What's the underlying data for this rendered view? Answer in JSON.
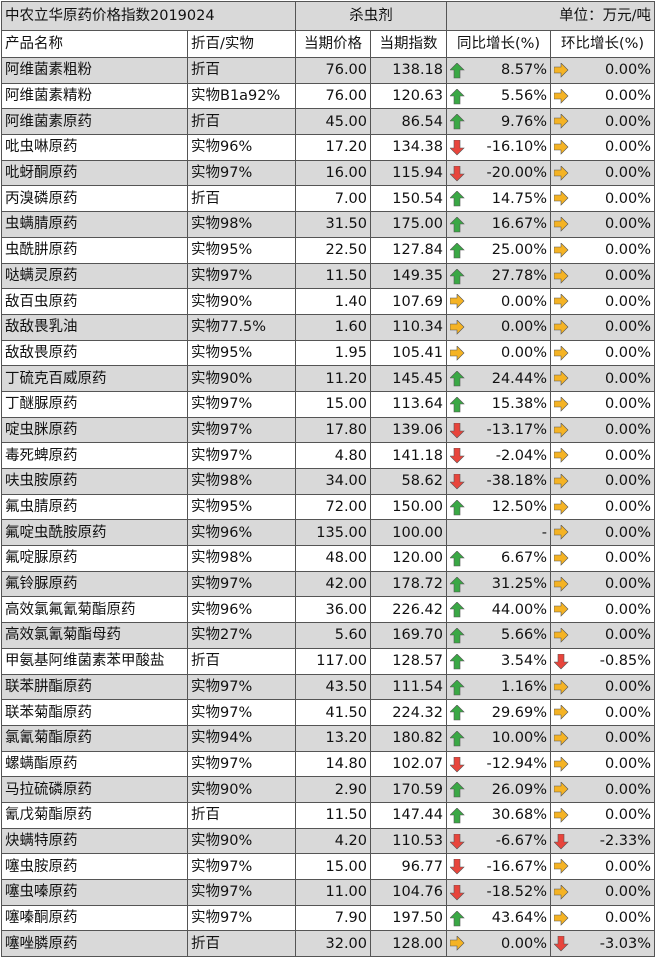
{
  "header": {
    "title": "中农立华原药价格指数2019024",
    "category": "杀虫剂",
    "unit": "单位：万元/吨"
  },
  "table": {
    "columns": [
      "产品名称",
      "折百/实物",
      "当期价格",
      "当期指数",
      "同比增长(%)",
      "环比增长(%)"
    ],
    "rows": [
      [
        "阿维菌素粗粉",
        "折百",
        "76.00",
        "138.18",
        "8.57%",
        "0.00%"
      ],
      [
        "阿维菌素精粉",
        "实物B1a92%",
        "76.00",
        "120.63",
        "5.56%",
        "0.00%"
      ],
      [
        "阿维菌素原药",
        "折百",
        "45.00",
        "86.54",
        "9.76%",
        "0.00%"
      ],
      [
        "吡虫啉原药",
        "实物96%",
        "17.20",
        "134.38",
        "-16.10%",
        "0.00%"
      ],
      [
        "吡蚜酮原药",
        "实物97%",
        "16.00",
        "115.94",
        "-20.00%",
        "0.00%"
      ],
      [
        "丙溴磷原药",
        "折百",
        "7.00",
        "150.54",
        "14.75%",
        "0.00%"
      ],
      [
        "虫螨腈原药",
        "实物98%",
        "31.50",
        "175.00",
        "16.67%",
        "0.00%"
      ],
      [
        "虫酰肼原药",
        "实物95%",
        "22.50",
        "127.84",
        "25.00%",
        "0.00%"
      ],
      [
        "哒螨灵原药",
        "实物97%",
        "11.50",
        "149.35",
        "27.78%",
        "0.00%"
      ],
      [
        "敌百虫原药",
        "实物90%",
        "1.40",
        "107.69",
        "0.00%",
        "0.00%"
      ],
      [
        "敌敌畏乳油",
        "实物77.5%",
        "1.60",
        "110.34",
        "0.00%",
        "0.00%"
      ],
      [
        "敌敌畏原药",
        "实物95%",
        "1.95",
        "105.41",
        "0.00%",
        "0.00%"
      ],
      [
        "丁硫克百威原药",
        "实物90%",
        "11.20",
        "145.45",
        "24.44%",
        "0.00%"
      ],
      [
        "丁醚脲原药",
        "实物97%",
        "15.00",
        "113.64",
        "15.38%",
        "0.00%"
      ],
      [
        "啶虫脒原药",
        "实物97%",
        "17.80",
        "139.06",
        "-13.17%",
        "0.00%"
      ],
      [
        "毒死蜱原药",
        "实物97%",
        "4.80",
        "141.18",
        "-2.04%",
        "0.00%"
      ],
      [
        "呋虫胺原药",
        "实物98%",
        "34.00",
        "58.62",
        "-38.18%",
        "0.00%"
      ],
      [
        "氟虫腈原药",
        "实物95%",
        "72.00",
        "150.00",
        "12.50%",
        "0.00%"
      ],
      [
        "氟啶虫酰胺原药",
        "实物96%",
        "135.00",
        "100.00",
        "-",
        "0.00%"
      ],
      [
        "氟啶脲原药",
        "实物98%",
        "48.00",
        "120.00",
        "6.67%",
        "0.00%"
      ],
      [
        "氟铃脲原药",
        "实物97%",
        "42.00",
        "178.72",
        "31.25%",
        "0.00%"
      ],
      [
        "高效氯氟氰菊酯原药",
        "实物96%",
        "36.00",
        "226.42",
        "44.00%",
        "0.00%"
      ],
      [
        "高效氯氰菊酯母药",
        "实物27%",
        "5.60",
        "169.70",
        "5.66%",
        "0.00%"
      ],
      [
        "甲氨基阿维菌素苯甲酸盐",
        "折百",
        "117.00",
        "128.57",
        "3.54%",
        "-0.85%"
      ],
      [
        "联苯肼酯原药",
        "实物97%",
        "43.50",
        "111.54",
        "1.16%",
        "0.00%"
      ],
      [
        "联苯菊酯原药",
        "实物97%",
        "41.50",
        "224.32",
        "29.69%",
        "0.00%"
      ],
      [
        "氯氰菊酯原药",
        "实物94%",
        "13.20",
        "180.82",
        "10.00%",
        "0.00%"
      ],
      [
        "螺螨酯原药",
        "实物97%",
        "14.80",
        "102.07",
        "-12.94%",
        "0.00%"
      ],
      [
        "马拉硫磷原药",
        "实物90%",
        "2.90",
        "170.59",
        "26.09%",
        "0.00%"
      ],
      [
        "氰戊菊酯原药",
        "折百",
        "11.50",
        "147.44",
        "30.68%",
        "0.00%"
      ],
      [
        "炔螨特原药",
        "实物90%",
        "4.20",
        "110.53",
        "-6.67%",
        "-2.33%"
      ],
      [
        "噻虫胺原药",
        "实物97%",
        "15.00",
        "96.77",
        "-16.67%",
        "0.00%"
      ],
      [
        "噻虫嗪原药",
        "实物97%",
        "11.00",
        "104.76",
        "-18.52%",
        "0.00%"
      ],
      [
        "噻嗪酮原药",
        "实物97%",
        "7.90",
        "197.50",
        "43.64%",
        "0.00%"
      ],
      [
        "噻唑膦原药",
        "折百",
        "32.00",
        "128.00",
        "0.00%",
        "-3.03%"
      ]
    ]
  }
}
